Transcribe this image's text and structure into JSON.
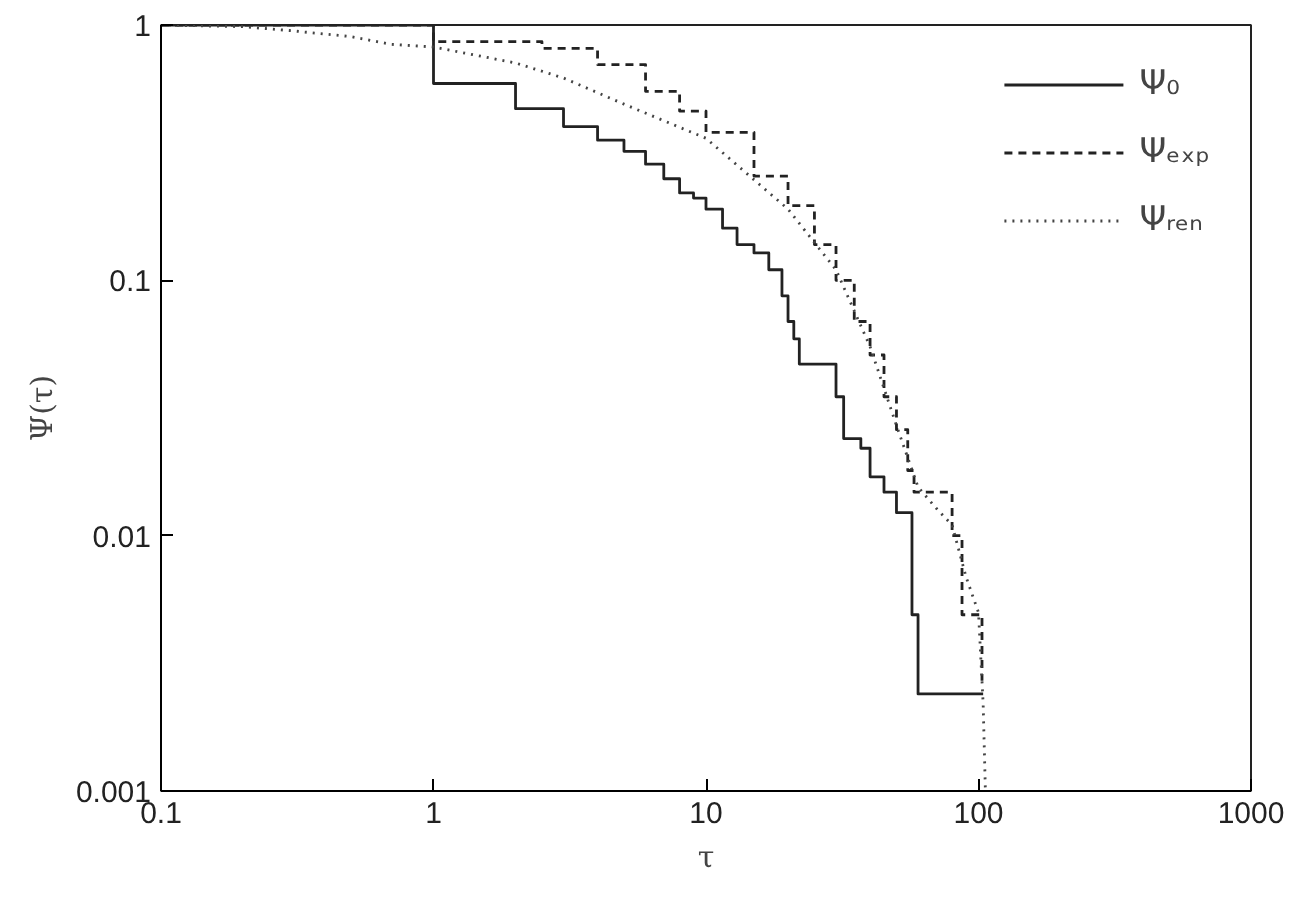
{
  "chart_data": {
    "type": "line",
    "xlabel": "τ",
    "ylabel": "Ψ(τ)",
    "log": "xy",
    "xlim": [
      0.1,
      1000
    ],
    "ylim": [
      0.001,
      1
    ],
    "xticks": [
      0.1,
      1,
      10,
      100,
      1000
    ],
    "yticks": [
      0.001,
      0.01,
      0.1,
      1
    ],
    "grid": false,
    "legend": "top right",
    "marker": "none",
    "series": [
      {
        "name": "Ψ₀",
        "type": "step",
        "color": "#222222",
        "line_style": "solid",
        "x": [
          0.1,
          1,
          2,
          3,
          4,
          5,
          6,
          7,
          8,
          9,
          10,
          11.5,
          13,
          15,
          17,
          19,
          20,
          21,
          22,
          28,
          30,
          32,
          37,
          40,
          45,
          50,
          57,
          60,
          104
        ],
        "values": [
          1,
          0.59,
          0.47,
          0.4,
          0.354,
          0.32,
          0.285,
          0.25,
          0.22,
          0.21,
          0.19,
          0.16,
          0.138,
          0.128,
          0.11,
          0.087,
          0.069,
          0.059,
          0.047,
          0.047,
          0.035,
          0.024,
          0.022,
          0.017,
          0.0148,
          0.0123,
          0.0049,
          0.0024,
          0.0024
        ]
      },
      {
        "name": "Ψₑₓₚ",
        "type": "step",
        "color": "#222222",
        "line_style": "dashed",
        "x": [
          0.1,
          1,
          2,
          2.5,
          4,
          6,
          8,
          10,
          15,
          20,
          25,
          30,
          35,
          40,
          45,
          50,
          55,
          58,
          75,
          80,
          87,
          100,
          103
        ],
        "values": [
          1,
          0.86,
          0.86,
          0.81,
          0.7,
          0.55,
          0.46,
          0.38,
          0.256,
          0.196,
          0.138,
          0.1,
          0.069,
          0.051,
          0.035,
          0.026,
          0.018,
          0.0148,
          0.0148,
          0.01,
          0.0049,
          0.0049,
          0.0027
        ]
      },
      {
        "name": "Ψᵣₑₙ",
        "color": "#444444",
        "line_style": "dotted",
        "x": [
          0.1,
          0.2,
          0.3,
          0.5,
          0.7,
          1,
          2,
          3,
          5,
          10,
          20,
          30,
          40,
          50,
          60,
          70,
          80,
          90,
          100,
          104,
          106
        ],
        "values": [
          1,
          0.985,
          0.95,
          0.9,
          0.84,
          0.82,
          0.71,
          0.62,
          0.49,
          0.36,
          0.19,
          0.11,
          0.055,
          0.027,
          0.0155,
          0.0128,
          0.011,
          0.0069,
          0.005,
          0.0022,
          0.001
        ]
      }
    ]
  }
}
